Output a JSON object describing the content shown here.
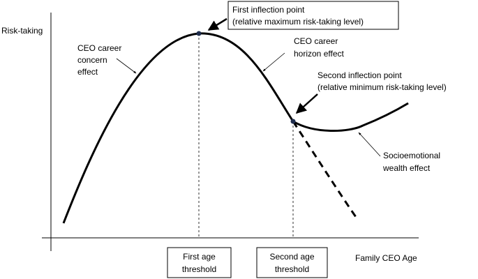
{
  "axes": {
    "y_label": "Risk-taking",
    "x_label": "Family CEO Age"
  },
  "callouts": {
    "first_inflection": [
      "First inflection point",
      "(relative maximum risk-taking level)"
    ],
    "second_inflection": [
      "Second inflection point",
      "(relative minimum risk-taking level)"
    ]
  },
  "effects": {
    "career_concern": [
      "CEO career",
      "concern",
      "effect"
    ],
    "career_horizon": [
      "CEO career",
      "horizon effect"
    ],
    "socioemotional": [
      "Socioemotional",
      "wealth effect"
    ]
  },
  "thresholds": {
    "first": [
      "First age",
      "threshold"
    ],
    "second": [
      "Second age",
      "threshold"
    ]
  },
  "colors": {
    "line": "#000000",
    "point": "#1f2d4d"
  }
}
